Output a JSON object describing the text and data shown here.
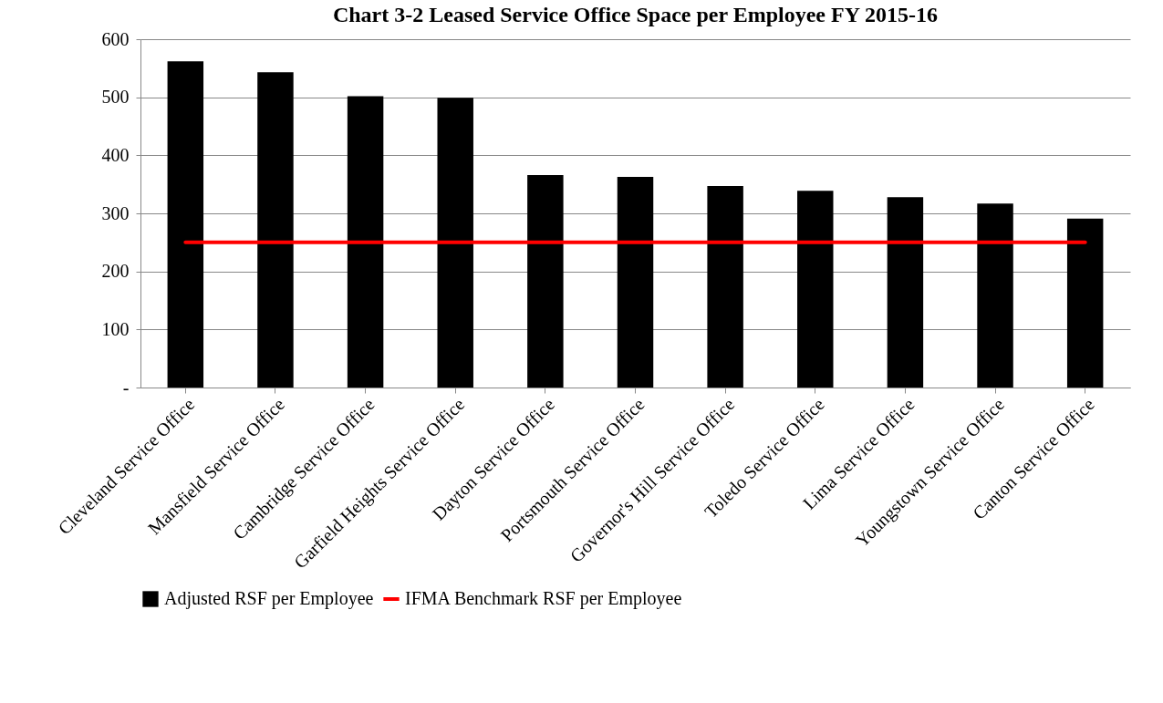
{
  "chart_data": {
    "type": "bar",
    "title": "Chart 3-2 Leased Service Office Space per Employee FY 2015-16",
    "categories": [
      "Cleveland Service Office",
      "Mansfield Service Office",
      "Cambridge Service Office",
      "Garfield Heights Service Office",
      "Dayton Service Office",
      "Portsmouth Service Office",
      "Governor's Hill Service Office",
      "Toledo Service Office",
      "Lima Service Office",
      "Youngstown Service Office",
      "Canton Service Office"
    ],
    "series": [
      {
        "name": "Adjusted RSF per Employee",
        "color": "#000000",
        "values": [
          562,
          543,
          502,
          499,
          366,
          363,
          347,
          339,
          328,
          317,
          291
        ]
      },
      {
        "name": "IFMA Benchmark RSF per Employee",
        "type": "line",
        "color": "#ff0000",
        "values": [
          250,
          250,
          250,
          250,
          250,
          250,
          250,
          250,
          250,
          250,
          250
        ]
      }
    ],
    "ylim": [
      0,
      600
    ],
    "yticks": [
      {
        "value": 0,
        "label": "-"
      },
      100,
      200,
      300,
      400,
      500,
      600
    ],
    "grid": "y",
    "legend": "bottom",
    "marker": "none",
    "line_style": "solid"
  }
}
